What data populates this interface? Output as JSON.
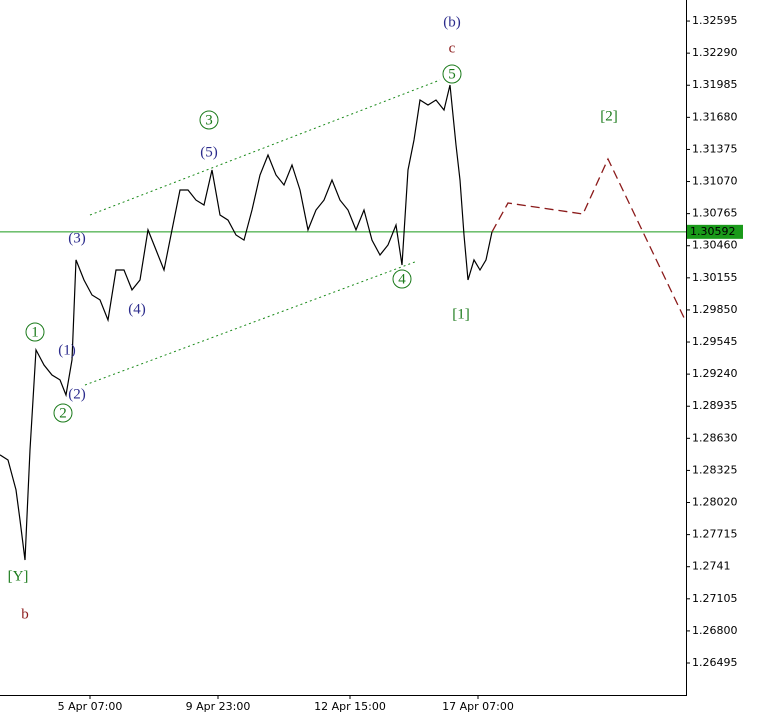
{
  "chart_data": {
    "type": "line",
    "x": [
      0,
      2,
      4,
      5,
      6.25,
      7.5,
      9,
      11,
      13,
      15,
      16.5,
      18,
      19,
      21,
      23,
      25,
      27,
      29,
      31,
      33,
      35,
      37,
      39,
      41,
      43,
      45,
      47,
      49,
      51,
      53,
      55,
      57,
      59,
      61,
      63,
      65,
      67,
      69,
      71,
      73,
      75,
      77,
      79,
      81,
      83,
      85,
      87,
      89,
      91,
      93,
      95,
      97,
      99,
      100.5,
      102,
      103.5,
      105,
      107,
      109,
      111,
      112.5,
      114,
      115,
      116,
      117,
      118.5,
      120,
      121.5,
      123
    ],
    "series": [
      {
        "color": "#000000",
        "values": [
          1.28472,
          1.28424,
          1.2814,
          1.27854,
          1.27474,
          1.2852,
          1.2947,
          1.29327,
          1.29232,
          1.29185,
          1.29042,
          1.29375,
          1.30325,
          1.30134,
          1.29992,
          1.29945,
          1.29754,
          1.30229,
          1.30229,
          1.3004,
          1.30134,
          1.3061,
          1.3042,
          1.30229,
          1.3061,
          1.3099,
          1.3099,
          1.30894,
          1.30847,
          1.3118,
          1.30752,
          1.30704,
          1.30562,
          1.30514,
          1.308,
          1.31132,
          1.31322,
          1.31132,
          1.31037,
          1.31227,
          1.3099,
          1.3061,
          1.308,
          1.30894,
          1.31085,
          1.30894,
          1.308,
          1.3061,
          1.308,
          1.30514,
          1.30372,
          1.30467,
          1.30657,
          1.30277,
          1.3118,
          1.31465,
          1.31845,
          1.31797,
          1.31845,
          1.3175,
          1.31987,
          1.31417,
          1.31085,
          1.30562,
          1.30134,
          1.30325,
          1.30229,
          1.30325,
          1.30591
        ]
      }
    ],
    "forecast": {
      "color": "#8b1a1a",
      "x": [
        123,
        127,
        145.75,
        152,
        171.5
      ],
      "values": [
        1.30591,
        1.30866,
        1.30762,
        1.31284,
        1.29736
      ]
    },
    "channel": {
      "color": "#1a8a1a",
      "upper": {
        "x": [
          22.5,
          110
        ],
        "values": [
          1.30752,
          1.32035
        ]
      },
      "lower": {
        "x": [
          21.25,
          103.75
        ],
        "values": [
          1.29137,
          1.30306
        ]
      }
    },
    "current_price": {
      "value": 1.30592,
      "color": "#1a9a1a"
    },
    "annotations": [
      "(b)",
      "c",
      "5",
      "[2]",
      "3",
      "(5)",
      "(3)",
      "4",
      "(4)",
      "[1]",
      "1",
      "(1)",
      "(2)",
      "2",
      "[Y]",
      "b"
    ],
    "xlim": [
      0,
      171.5
    ],
    "xticks": [
      {
        "value": 22.5,
        "label": "5 Apr 07:00"
      },
      {
        "value": 54.5,
        "label": "9 Apr 23:00"
      },
      {
        "value": 87.5,
        "label": "12 Apr 15:00"
      },
      {
        "value": 119.5,
        "label": "17 Apr 07:00"
      }
    ],
    "ylim": [
      1.26191,
      1.32795
    ],
    "yticks": [
      1.32595,
      {
        "value": 1.3229,
        "label": "1.32290"
      },
      1.31985,
      {
        "value": 1.3168,
        "label": "1.31680"
      },
      1.31375,
      {
        "value": 1.3107,
        "label": "1.31070"
      },
      1.30765,
      {
        "value": 1.3046,
        "label": "1.30460"
      },
      1.30155,
      {
        "value": 1.2985,
        "label": "1.29850"
      },
      1.29545,
      {
        "value": 1.2924,
        "label": "1.29240"
      },
      1.28935,
      {
        "value": 1.2863,
        "label": "1.28630"
      },
      1.28325,
      {
        "value": 1.2802,
        "label": "1.28020"
      },
      1.27715,
      1.2741,
      1.27105,
      {
        "value": 1.268,
        "label": "1.26800"
      },
      1.26495
    ]
  }
}
